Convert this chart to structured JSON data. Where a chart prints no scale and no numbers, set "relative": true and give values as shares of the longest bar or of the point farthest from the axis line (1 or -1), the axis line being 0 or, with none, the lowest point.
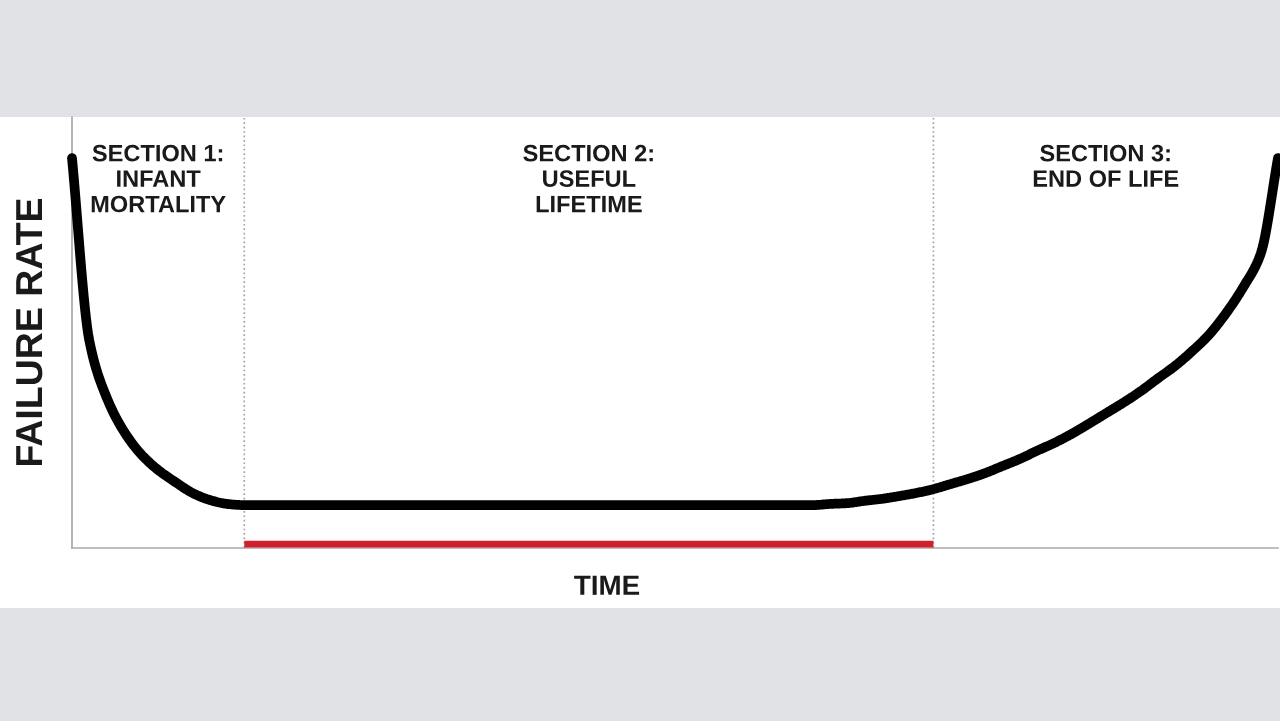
{
  "chart_data": {
    "type": "line",
    "relative": true,
    "xlabel": "TIME",
    "ylabel": "FAILURE RATE",
    "tick_labels": false,
    "line_style": "solid",
    "categories": [
      null,
      null,
      null,
      null,
      null,
      null,
      null,
      null,
      null,
      null,
      null,
      null,
      null,
      null,
      null,
      null,
      null,
      null,
      null,
      null,
      null,
      null,
      null,
      null,
      null,
      null,
      null,
      null,
      null,
      null,
      null,
      null,
      null,
      null,
      null,
      null,
      null,
      null,
      null,
      null,
      null,
      null,
      null,
      null,
      null,
      null,
      null,
      null,
      null,
      null,
      null,
      null,
      null,
      null,
      null,
      null,
      null,
      null,
      null,
      null,
      null,
      null,
      null,
      null,
      null,
      null,
      null,
      null,
      null,
      null,
      null
    ],
    "series": [
      {
        "color": "#000000",
        "values": [
          1.0,
          0.533,
          0.387,
          0.3,
          0.241,
          0.2,
          0.169,
          0.141,
          0.123,
          0.113,
          0.11,
          0.11,
          0.11,
          0.11,
          0.11,
          0.11,
          0.11,
          0.11,
          0.11,
          0.11,
          0.11,
          0.11,
          0.11,
          0.11,
          0.11,
          0.11,
          0.11,
          0.11,
          0.11,
          0.11,
          0.11,
          0.11,
          0.11,
          0.11,
          0.11,
          0.11,
          0.11,
          0.11,
          0.11,
          0.11,
          0.11,
          0.11,
          0.11,
          0.11,
          0.113,
          0.115,
          0.121,
          0.126,
          0.133,
          0.141,
          0.151,
          0.164,
          0.177,
          0.192,
          0.21,
          0.228,
          0.249,
          0.269,
          0.292,
          0.318,
          0.345,
          0.372,
          0.401,
          0.434,
          0.466,
          0.504,
          0.547,
          0.603,
          0.67,
          0.755,
          1.0
        ]
      },
      {
        "color": "#d0202e",
        "values": [
          null,
          null,
          null,
          null,
          null,
          null,
          null,
          null,
          null,
          null,
          0.01,
          0.01,
          0.01,
          0.01,
          0.01,
          0.01,
          0.01,
          0.01,
          0.01,
          0.01,
          0.01,
          0.01,
          0.01,
          0.01,
          0.01,
          0.01,
          0.01,
          0.01,
          0.01,
          0.01,
          0.01,
          0.01,
          0.01,
          0.01,
          0.01,
          0.01,
          0.01,
          0.01,
          0.01,
          0.01,
          0.01,
          0.01,
          0.01,
          0.01,
          0.01,
          0.01,
          0.01,
          0.01,
          0.01,
          0.01,
          0.01,
          null,
          null,
          null,
          null,
          null,
          null,
          null,
          null,
          null,
          null,
          null,
          null,
          null,
          null,
          null,
          null,
          null,
          null,
          null,
          null
        ]
      }
    ],
    "annotations": [
      "SECTION 1:\nINFANT\nMORTALITY",
      "SECTION 2:\nUSEFUL\nLIFETIME",
      "SECTION 3:\nEND OF LIFE"
    ]
  }
}
